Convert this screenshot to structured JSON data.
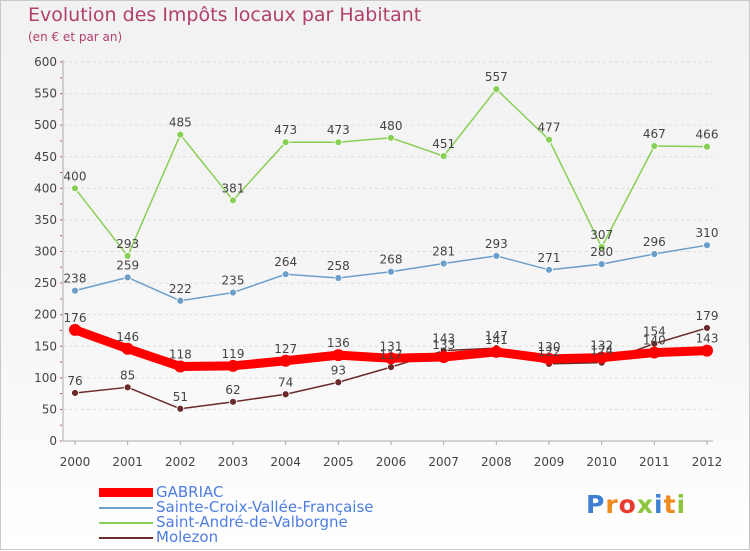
{
  "title": "Evolution des Impôts locaux par Habitant",
  "subtitle": "(en € et par an)",
  "logo_text": "Proxiti",
  "colors": {
    "title": "#b0406e",
    "legend_text": "#4e7ee0",
    "axis": "#aaaaaa",
    "grid": "#dddddd"
  },
  "chart_data": {
    "type": "line",
    "title": "Evolution des Impôts locaux par Habitant",
    "subtitle": "(en € et par an)",
    "x": [
      "2000",
      "2001",
      "2002",
      "2003",
      "2004",
      "2005",
      "2006",
      "2007",
      "2008",
      "2009",
      "2010",
      "2011",
      "2012"
    ],
    "ylim": [
      0,
      600
    ],
    "yticks": [
      0,
      50,
      100,
      150,
      200,
      250,
      300,
      350,
      400,
      450,
      500,
      550,
      600
    ],
    "grid": "horizontal dashed",
    "legend_position": "bottom-left",
    "series": [
      {
        "name": "GABRIAC",
        "color": "#ff0000",
        "values": [
          176,
          146,
          118,
          119,
          127,
          136,
          131,
          133,
          141,
          130,
          132,
          140,
          143
        ]
      },
      {
        "name": "Sainte-Croix-Vallée-Française",
        "color": "#6c9ec9",
        "values": [
          238,
          259,
          222,
          235,
          264,
          258,
          268,
          281,
          293,
          271,
          280,
          296,
          310
        ]
      },
      {
        "name": "Saint-André-de-Valborgne",
        "color": "#88cf55",
        "values": [
          400,
          293,
          485,
          381,
          473,
          473,
          480,
          451,
          557,
          477,
          307,
          467,
          466
        ]
      },
      {
        "name": "Molezon",
        "color": "#6b2a2a",
        "values": [
          76,
          85,
          51,
          62,
          74,
          93,
          117,
          143,
          147,
          122,
          124,
          154,
          179
        ]
      }
    ]
  }
}
